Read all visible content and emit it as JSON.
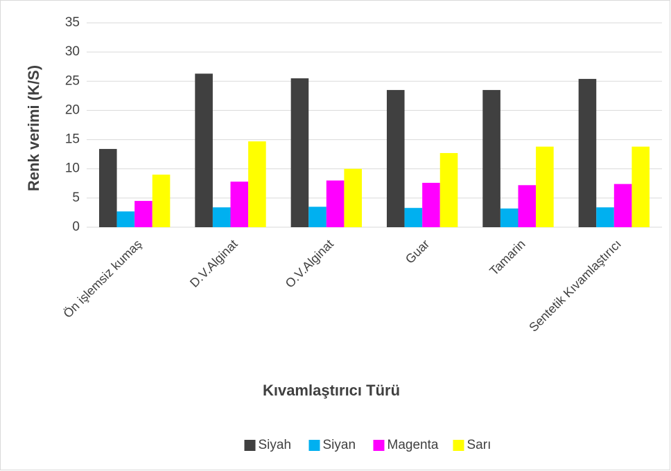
{
  "chart_data": {
    "type": "bar",
    "x_label": "Kıvamlaştırıcı Türü",
    "y_label": "Renk verimi (K/S)",
    "categories": [
      "Ön işlemsiz kumaş",
      "D.V.Alginat",
      "O.V.Alginat",
      "Guar",
      "Tamarin",
      "Sentetik Kıvamlaştırıcı"
    ],
    "series": [
      {
        "name": "Siyah",
        "color": "#404040",
        "values": [
          13.4,
          26.3,
          25.5,
          23.5,
          23.5,
          25.4
        ]
      },
      {
        "name": "Siyan",
        "color": "#00b0f0",
        "values": [
          2.7,
          3.4,
          3.5,
          3.3,
          3.2,
          3.4
        ]
      },
      {
        "name": "Magenta",
        "color": "#ff00ff",
        "values": [
          4.5,
          7.8,
          8.0,
          7.6,
          7.2,
          7.4
        ]
      },
      {
        "name": "Sarı",
        "color": "#ffff00",
        "values": [
          9.0,
          14.7,
          10.0,
          12.7,
          13.8,
          13.8
        ]
      }
    ],
    "ylim": [
      0,
      35
    ],
    "yticks": [
      0,
      5,
      10,
      15,
      20,
      25,
      30,
      35
    ],
    "grid": true,
    "legend": "bottom"
  }
}
